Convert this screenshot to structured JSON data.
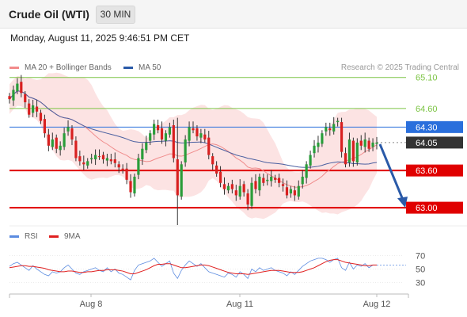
{
  "header": {
    "instrument": "Crude Oil (WTI)",
    "timeframe": "30 MIN"
  },
  "datetime": "Monday, August 11, 2025 9:46:51 PM CET",
  "legend": {
    "ma20_label": "MA 20 + Bollinger Bands",
    "ma20_color": "#f28b8b",
    "ma50_label": "MA 50",
    "ma50_color": "#2a5aa8",
    "rsi_label": "RSI",
    "rsi_color": "#5b8be0",
    "rsi9_label": "9MA",
    "rsi9_color": "#e02020"
  },
  "copyright": "Research © 2025 Trading Central",
  "colors": {
    "up": "#2a9d3a",
    "down": "#d82020",
    "resistance": "#7cc444",
    "support": "#e00000",
    "pivot": "#2a6fdc",
    "last": "#333333",
    "band": "#fbdada",
    "forecast": "#2a5aa8"
  },
  "chart_data": [
    {
      "type": "candlestick",
      "title": "",
      "timeframe": "30 MIN",
      "x_ticks": [
        "Aug 8",
        "Aug 11",
        "Aug 12"
      ],
      "ylim": [
        62.72,
        65.25
      ],
      "price_labels": [
        "65.10",
        "64.60",
        "64.30",
        "64.05",
        "63.60",
        "63.00"
      ],
      "levels": [
        {
          "value": 65.1,
          "label": "65.10",
          "kind": "resistance"
        },
        {
          "value": 64.6,
          "label": "64.60",
          "kind": "resistance"
        },
        {
          "value": 64.3,
          "label": "64.30",
          "kind": "pivot"
        },
        {
          "value": 64.05,
          "label": "64.05",
          "kind": "last"
        },
        {
          "value": 63.6,
          "label": "63.60",
          "kind": "support"
        },
        {
          "value": 63.0,
          "label": "63.00",
          "kind": "support"
        }
      ],
      "forecast": {
        "from": 64.05,
        "to": 63.0,
        "direction": "down"
      },
      "close": [
        64.75,
        64.9,
        65.0,
        64.85,
        64.7,
        64.5,
        64.65,
        64.55,
        64.4,
        64.2,
        64.0,
        64.1,
        63.95,
        64.0,
        64.2,
        64.3,
        64.1,
        63.8,
        63.75,
        63.7,
        63.75,
        63.8,
        63.85,
        63.82,
        63.78,
        63.8,
        63.75,
        63.72,
        63.65,
        63.6,
        63.45,
        63.25,
        63.5,
        63.8,
        63.95,
        64.05,
        64.2,
        64.35,
        64.25,
        64.1,
        64.2,
        64.3,
        63.8,
        63.2,
        63.7,
        64.1,
        64.3,
        64.25,
        64.15,
        64.2,
        64.1,
        63.85,
        63.7,
        63.55,
        63.4,
        63.3,
        63.35,
        63.3,
        63.2,
        63.35,
        63.25,
        63.05,
        63.4,
        63.3,
        63.5,
        63.4,
        63.45,
        63.5,
        63.45,
        63.4,
        63.35,
        63.2,
        63.3,
        63.2,
        63.35,
        63.5,
        63.7,
        63.85,
        64.0,
        64.05,
        64.2,
        64.3,
        64.25,
        64.35,
        64.4,
        63.9,
        63.7,
        64.1,
        63.75,
        64.05,
        64.0,
        64.1,
        63.95,
        64.05,
        64.05
      ],
      "rsi_ylim": [
        20,
        80
      ],
      "rsi_ticks": [
        "70",
        "50",
        "30"
      ],
      "rsi": [
        54,
        58,
        60,
        56,
        52,
        48,
        55,
        50,
        46,
        42,
        40,
        46,
        44,
        46,
        52,
        56,
        50,
        44,
        42,
        46,
        48,
        50,
        52,
        48,
        46,
        52,
        46,
        50,
        44,
        42,
        38,
        34,
        48,
        56,
        58,
        60,
        62,
        66,
        60,
        54,
        58,
        62,
        44,
        36,
        48,
        56,
        62,
        58,
        54,
        58,
        52,
        46,
        44,
        42,
        40,
        38,
        44,
        42,
        38,
        46,
        42,
        36,
        50,
        46,
        52,
        48,
        50,
        52,
        48,
        46,
        44,
        40,
        46,
        42,
        48,
        54,
        58,
        62,
        64,
        66,
        66,
        64,
        60,
        64,
        66,
        52,
        48,
        60,
        50,
        56,
        54,
        58,
        52,
        56,
        56
      ],
      "rsi9": [
        52,
        53,
        54,
        55,
        55,
        54,
        54,
        53,
        52,
        51,
        49,
        48,
        47,
        46,
        46,
        47,
        47,
        46,
        45,
        45,
        46,
        46,
        47,
        48,
        48,
        49,
        49,
        49,
        48,
        47,
        45,
        43,
        43,
        45,
        47,
        49,
        52,
        55,
        57,
        57,
        58,
        58,
        56,
        54,
        52,
        52,
        53,
        54,
        55,
        56,
        56,
        55,
        53,
        51,
        49,
        47,
        45,
        44,
        43,
        43,
        43,
        42,
        43,
        44,
        45,
        46,
        47,
        48,
        48,
        48,
        47,
        46,
        45,
        45,
        45,
        46,
        48,
        50,
        52,
        55,
        58,
        61,
        63,
        64,
        64,
        62,
        60,
        59,
        58,
        57,
        56,
        55,
        55,
        56,
        56
      ]
    }
  ]
}
